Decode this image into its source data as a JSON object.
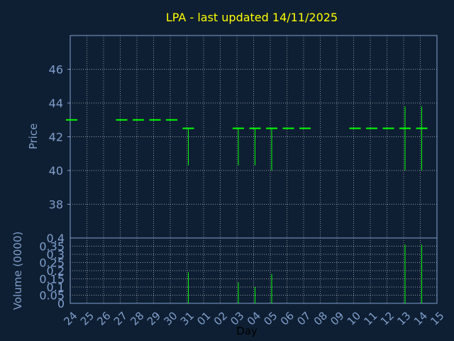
{
  "chart_data": {
    "type": "ohlc-volume",
    "title": "LPA - last updated 14/11/2025",
    "xlabel": "Day",
    "price_ylabel": "Price",
    "volume_ylabel": "Volume (0000)",
    "x_ticks": [
      "24",
      "25",
      "26",
      "27",
      "28",
      "29",
      "30",
      "31",
      "01",
      "02",
      "03",
      "04",
      "05",
      "06",
      "07",
      "08",
      "09",
      "10",
      "11",
      "12",
      "13",
      "14",
      "15"
    ],
    "price_ylim": [
      36,
      48
    ],
    "price_ticks": [
      "38",
      "40",
      "42",
      "44",
      "46"
    ],
    "price_tick_values": [
      38,
      40,
      42,
      44,
      46
    ],
    "volume_ylim": [
      0,
      0.4
    ],
    "volume_ticks": [
      "0",
      "0.05",
      "0.1",
      "0.15",
      "0.2",
      "0.25",
      "0.3",
      "0.35",
      "0.4"
    ],
    "volume_tick_values": [
      0,
      0.05,
      0.1,
      0.15,
      0.2,
      0.25,
      0.3,
      0.35,
      0.4
    ],
    "grid": true,
    "colors": {
      "background": "#0f1f33",
      "axes": "#7f9fcc",
      "grid": "#ffffff",
      "series": "#00ff00",
      "title": "#ffff00"
    },
    "series": [
      {
        "day": "24",
        "open": 43.0,
        "high": 43.0,
        "low": 43.0,
        "close": 43.0,
        "volume": 0
      },
      {
        "day": "27",
        "open": 43.0,
        "high": 43.0,
        "low": 43.0,
        "close": 43.0,
        "volume": 0
      },
      {
        "day": "28",
        "open": 43.0,
        "high": 43.0,
        "low": 43.0,
        "close": 43.0,
        "volume": 0
      },
      {
        "day": "29",
        "open": 43.0,
        "high": 43.0,
        "low": 43.0,
        "close": 43.0,
        "volume": 0
      },
      {
        "day": "30",
        "open": 43.0,
        "high": 43.0,
        "low": 43.0,
        "close": 43.0,
        "volume": 0
      },
      {
        "day": "31",
        "open": 42.5,
        "high": 42.5,
        "low": 40.3,
        "close": 42.5,
        "volume": 0.19
      },
      {
        "day": "03",
        "open": 42.5,
        "high": 42.5,
        "low": 40.3,
        "close": 42.5,
        "volume": 0.13
      },
      {
        "day": "04",
        "open": 42.5,
        "high": 42.5,
        "low": 40.3,
        "close": 42.5,
        "volume": 0.1
      },
      {
        "day": "05",
        "open": 42.5,
        "high": 42.5,
        "low": 40.0,
        "close": 42.5,
        "volume": 0.18
      },
      {
        "day": "06",
        "open": 42.5,
        "high": 42.5,
        "low": 42.5,
        "close": 42.5,
        "volume": 0
      },
      {
        "day": "07",
        "open": 42.5,
        "high": 42.5,
        "low": 42.5,
        "close": 42.5,
        "volume": 0
      },
      {
        "day": "10",
        "open": 42.5,
        "high": 42.5,
        "low": 42.5,
        "close": 42.5,
        "volume": 0
      },
      {
        "day": "11",
        "open": 42.5,
        "high": 42.5,
        "low": 42.5,
        "close": 42.5,
        "volume": 0
      },
      {
        "day": "12",
        "open": 42.5,
        "high": 42.5,
        "low": 42.5,
        "close": 42.5,
        "volume": 0
      },
      {
        "day": "13",
        "open": 42.5,
        "high": 43.8,
        "low": 40.0,
        "close": 42.5,
        "volume": 0.36
      },
      {
        "day": "14",
        "open": 42.5,
        "high": 43.8,
        "low": 40.0,
        "close": 42.5,
        "volume": 0.36
      }
    ]
  }
}
